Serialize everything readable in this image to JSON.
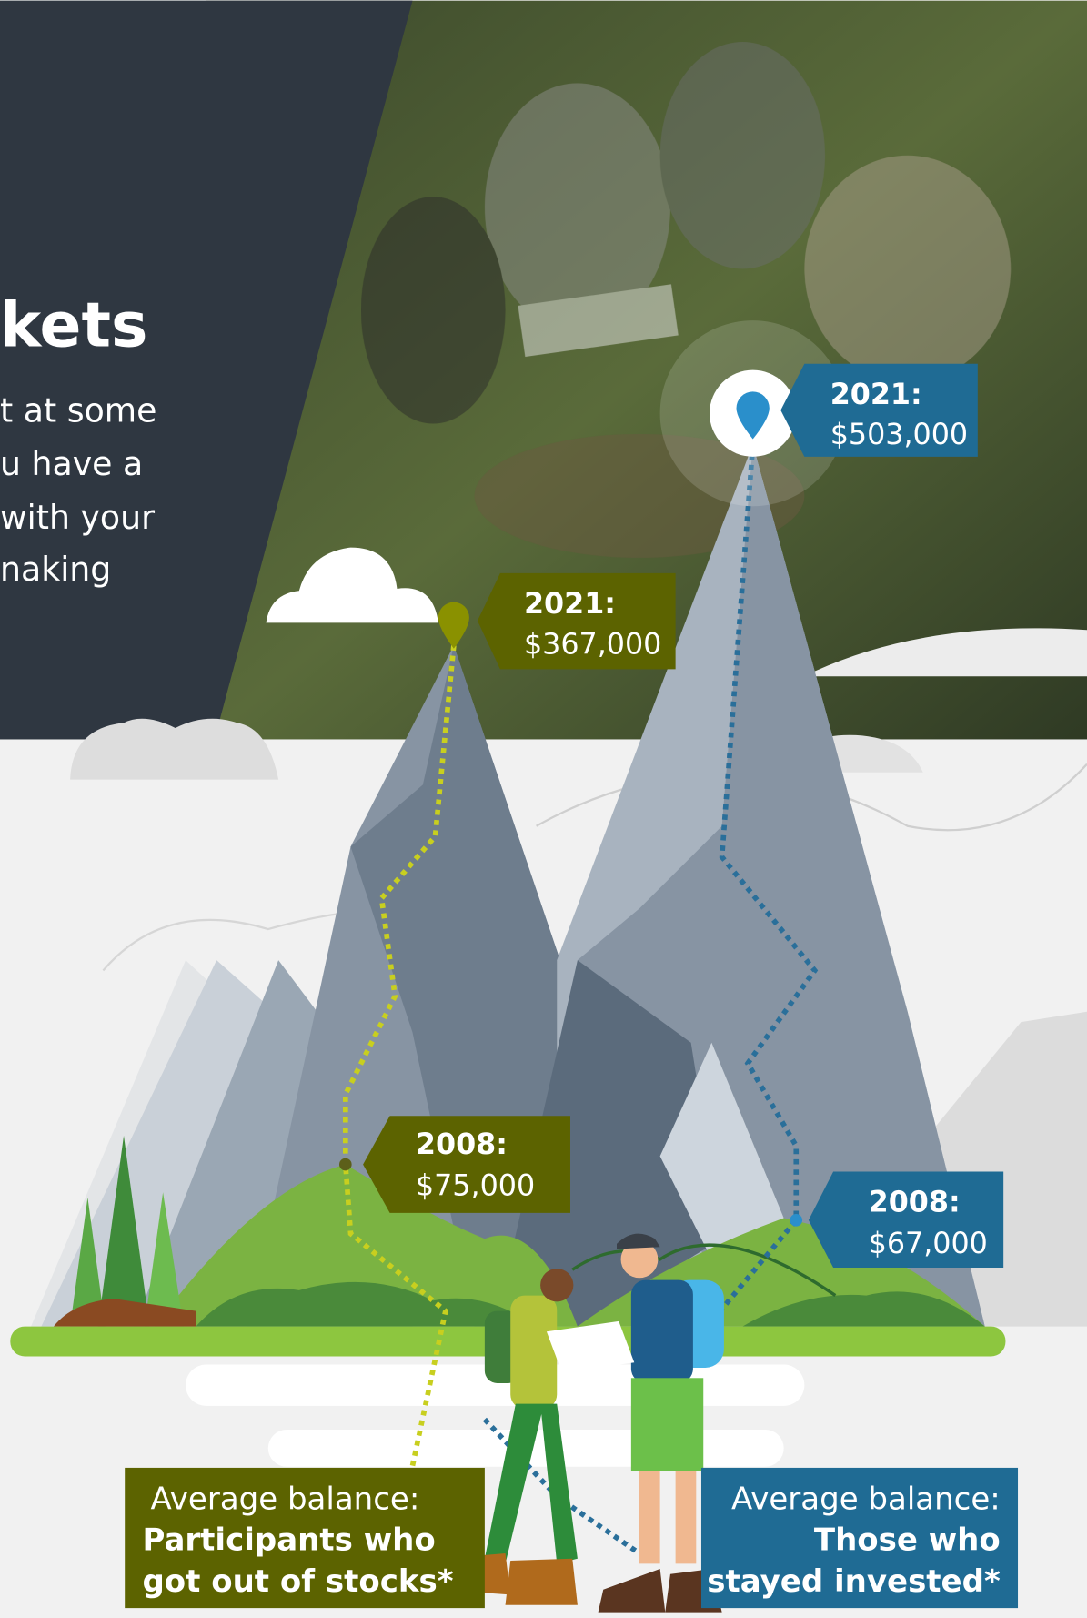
{
  "heading": "kets",
  "body_lines": [
    "t at some",
    "u have a",
    "with your",
    "naking"
  ],
  "callouts": [
    {
      "year": "2021:",
      "amount": "$367,000"
    },
    {
      "year": "2021:",
      "amount": "$503,000"
    },
    {
      "year": "2008:",
      "amount": "$75,000"
    },
    {
      "year": "2008:",
      "amount": "$67,000"
    }
  ],
  "legend": [
    {
      "title": "Average balance:",
      "lines": [
        "Participants who",
        "got out of stocks*"
      ]
    },
    {
      "title": "Average balance:",
      "lines": [
        "Those who",
        "stayed invested*"
      ]
    }
  ]
}
